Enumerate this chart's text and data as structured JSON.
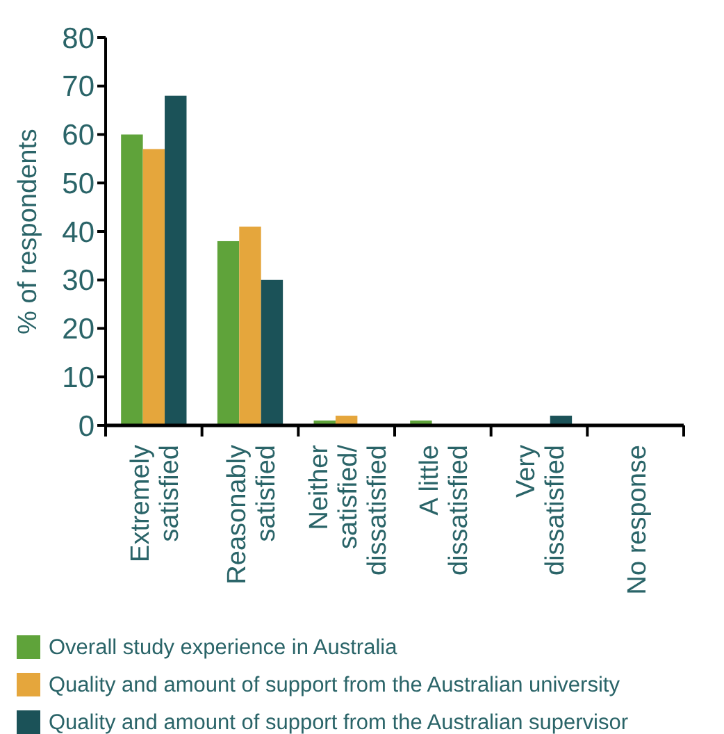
{
  "chart_data": {
    "type": "bar",
    "ylabel": "% of respondents",
    "categories": [
      "Extremely\nsatisfied",
      "Reasonably\nsatisfied",
      "Neither\nsatisfied/\ndissatisfied",
      "A little\ndissatisfied",
      "Very\ndissatisfied",
      "No response"
    ],
    "series": [
      {
        "name": "Overall study experience in Australia",
        "color": "#5fa33a",
        "values": [
          60,
          38,
          1,
          1,
          0,
          0
        ]
      },
      {
        "name": "Quality and amount of support from the Australian university",
        "color": "#e5a63c",
        "values": [
          57,
          41,
          2,
          0,
          0,
          0
        ]
      },
      {
        "name": "Quality and amount of support from the Australian supervisor",
        "color": "#1b5258",
        "values": [
          68,
          30,
          0,
          0,
          2,
          0
        ]
      }
    ],
    "ylim": [
      0,
      80
    ],
    "yticks": [
      0,
      10,
      20,
      30,
      40,
      50,
      60,
      70,
      80
    ],
    "grid": false,
    "legend": "bottom"
  }
}
